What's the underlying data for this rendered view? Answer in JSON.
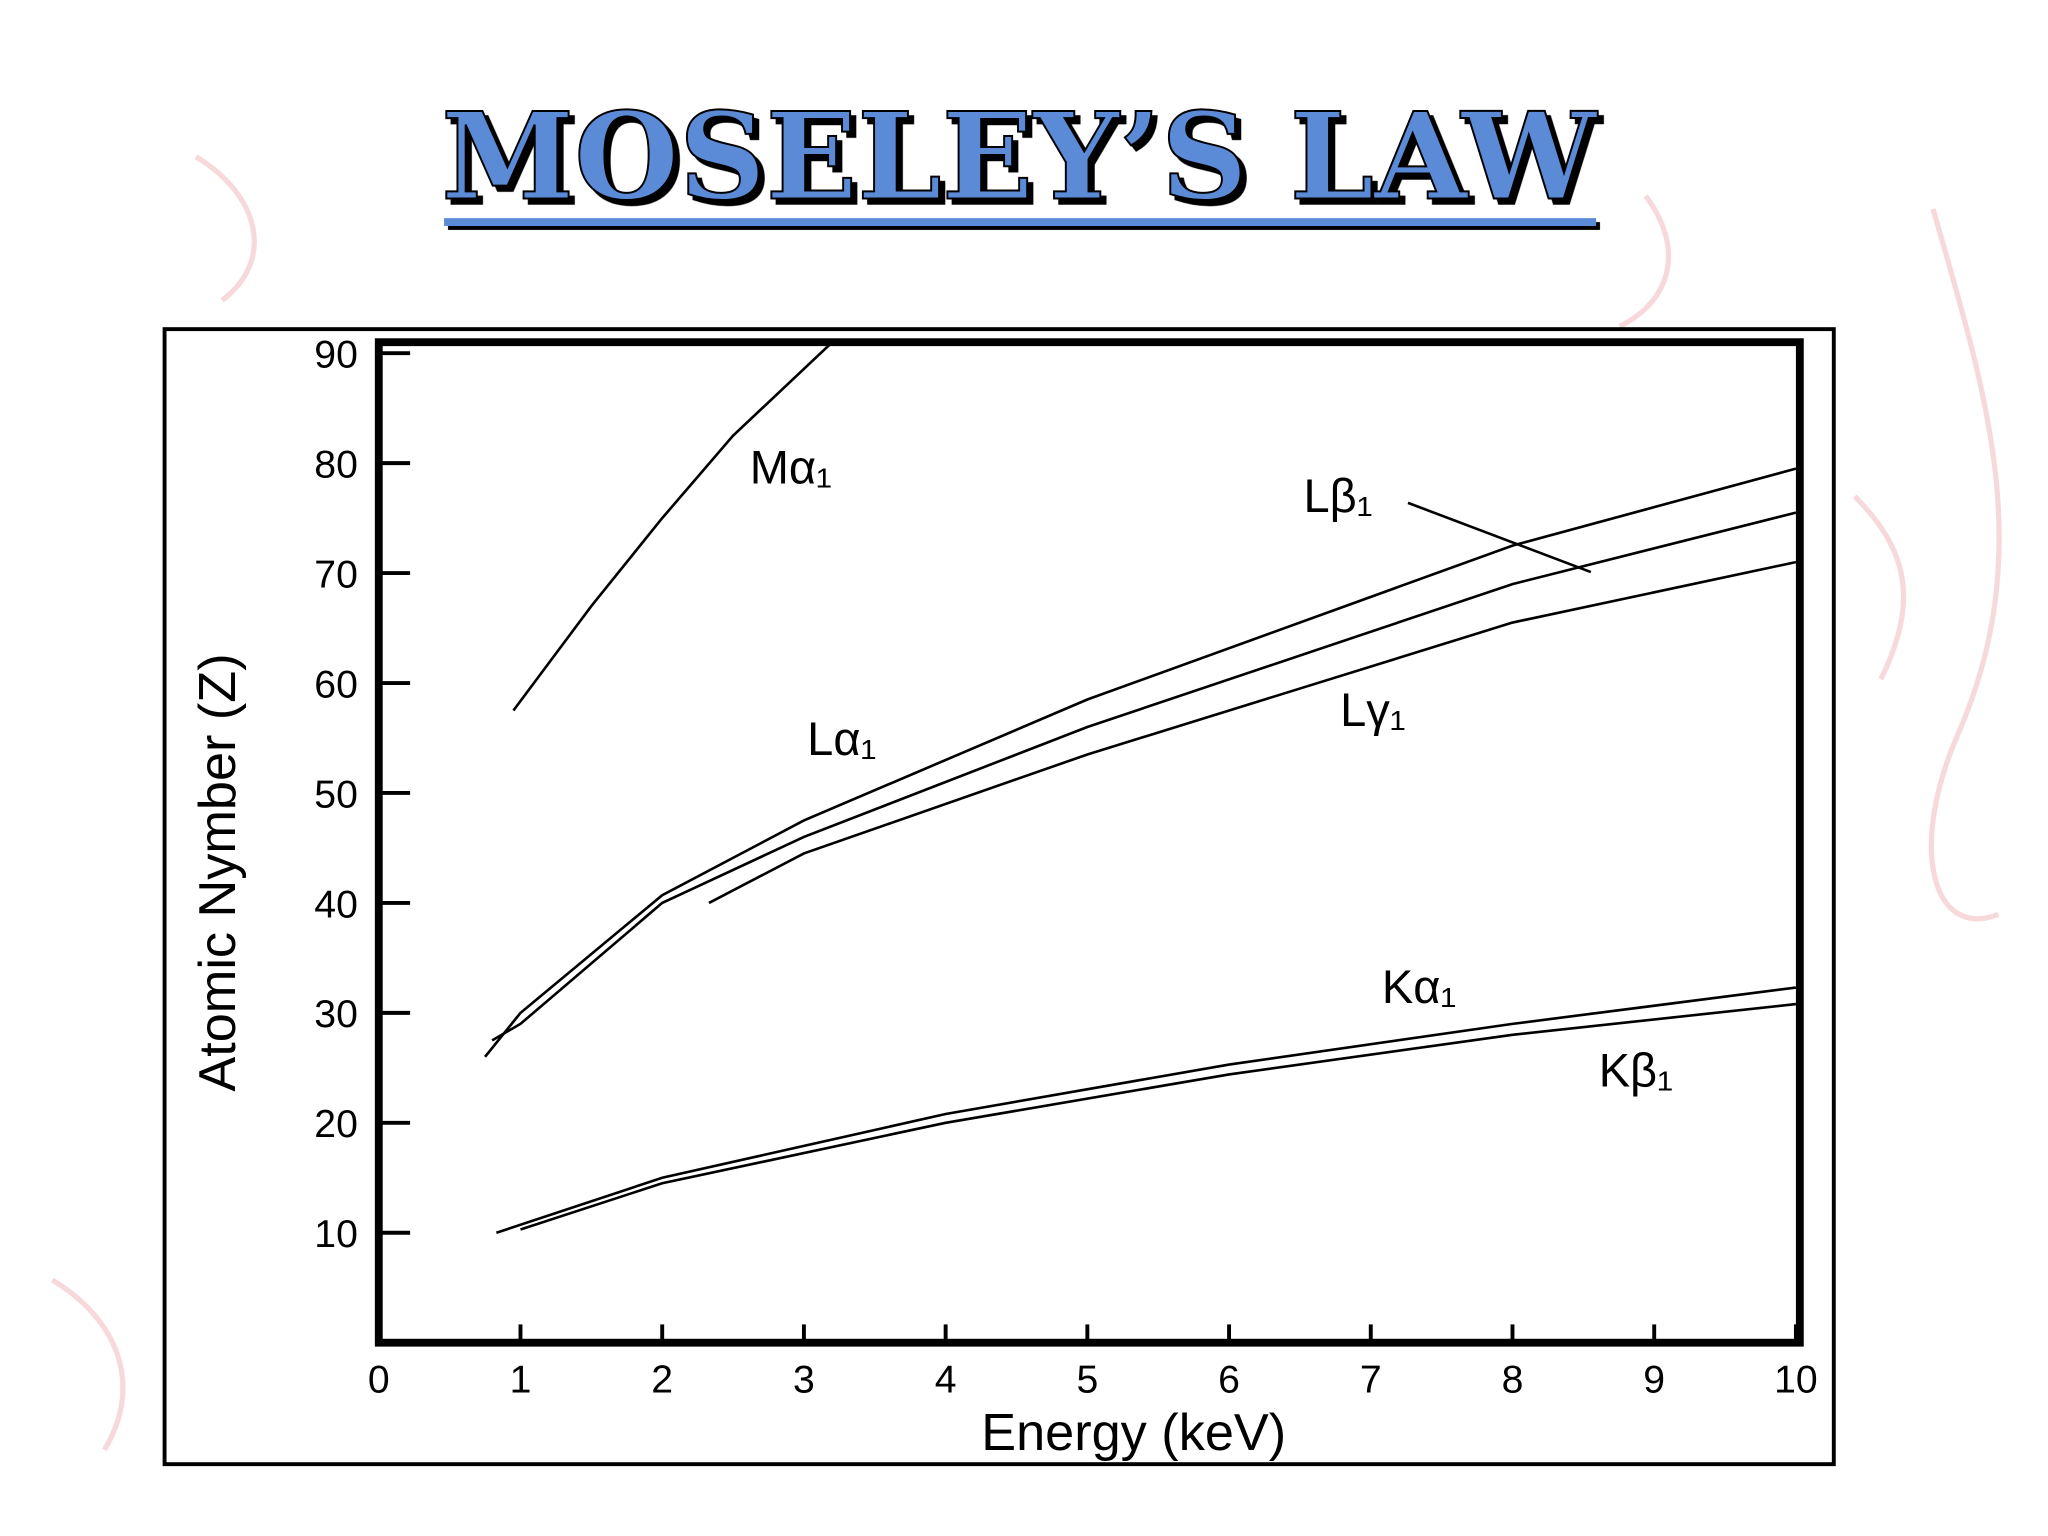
{
  "title": "MOSELEY’S LAW",
  "chart_data": {
    "type": "line",
    "x_label": "Energy (keV)",
    "y_label": "Atomic Nymber (Z)",
    "xlim": [
      0,
      10
    ],
    "xticks": [
      0,
      1,
      2,
      3,
      4,
      5,
      6,
      7,
      8,
      9,
      10
    ],
    "ylim": [
      0,
      91
    ],
    "yticks": [
      10,
      20,
      30,
      40,
      50,
      60,
      70,
      80,
      90
    ],
    "series": [
      {
        "name": "Mα₁",
        "color": "#000000",
        "x": [
          0.95,
          1.5,
          2,
          2.5,
          3.2
        ],
        "values": [
          57.5,
          67,
          75,
          82.5,
          91
        ]
      },
      {
        "name": "Lα₁",
        "color": "#000000",
        "x": [
          0.75,
          1,
          2,
          3,
          5,
          8,
          10
        ],
        "values": [
          26,
          30,
          40.7,
          47.5,
          58.5,
          72.5,
          79.5
        ]
      },
      {
        "name": "Lβ₁",
        "color": "#000000",
        "x": [
          0.8,
          1,
          2,
          3,
          5,
          8,
          10
        ],
        "values": [
          27.5,
          29,
          40,
          46,
          56,
          69,
          75.5
        ]
      },
      {
        "name": "Lγ₁",
        "color": "#000000",
        "x": [
          2.33,
          3,
          5,
          8,
          10
        ],
        "values": [
          40,
          44.5,
          53.5,
          65.5,
          71
        ]
      },
      {
        "name": "Kα₁",
        "color": "#000000",
        "x": [
          0.83,
          2,
          4,
          6,
          8,
          10
        ],
        "values": [
          10,
          15,
          20.8,
          25.3,
          29,
          32.3
        ]
      },
      {
        "name": "Kβ₁",
        "color": "#000000",
        "x": [
          1,
          2,
          4,
          6,
          8,
          10
        ],
        "values": [
          10.3,
          14.5,
          20,
          24.4,
          28,
          30.8
        ]
      }
    ]
  }
}
